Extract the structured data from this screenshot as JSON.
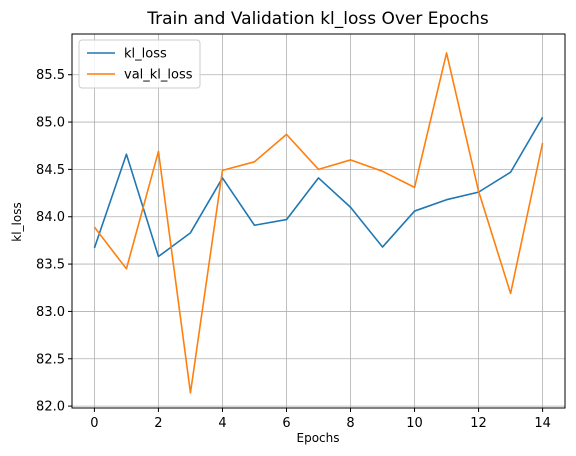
{
  "chart_data": {
    "type": "line",
    "title": "Train and Validation kl_loss Over Epochs",
    "xlabel": "Epochs",
    "ylabel": "kl_loss",
    "x": [
      0,
      1,
      2,
      3,
      4,
      5,
      6,
      7,
      8,
      9,
      10,
      11,
      12,
      13,
      14
    ],
    "xlim": [
      -0.7,
      14.7
    ],
    "ylim": [
      81.98,
      85.93
    ],
    "xticks": [
      0,
      2,
      4,
      6,
      8,
      10,
      12,
      14
    ],
    "yticks": [
      82.0,
      82.5,
      83.0,
      83.5,
      84.0,
      84.5,
      85.0,
      85.5
    ],
    "grid": true,
    "legend_position": "upper-left",
    "series": [
      {
        "name": "kl_loss",
        "color": "#1f77b4",
        "values": [
          83.67,
          84.66,
          83.58,
          83.83,
          84.41,
          83.91,
          83.97,
          84.41,
          84.1,
          83.68,
          84.06,
          84.18,
          84.26,
          84.47,
          85.05
        ]
      },
      {
        "name": "val_kl_loss",
        "color": "#ff7f0e",
        "values": [
          83.89,
          83.45,
          84.69,
          82.14,
          84.49,
          84.58,
          84.87,
          84.5,
          84.6,
          84.48,
          84.31,
          85.73,
          84.27,
          83.19,
          84.78
        ]
      }
    ]
  }
}
